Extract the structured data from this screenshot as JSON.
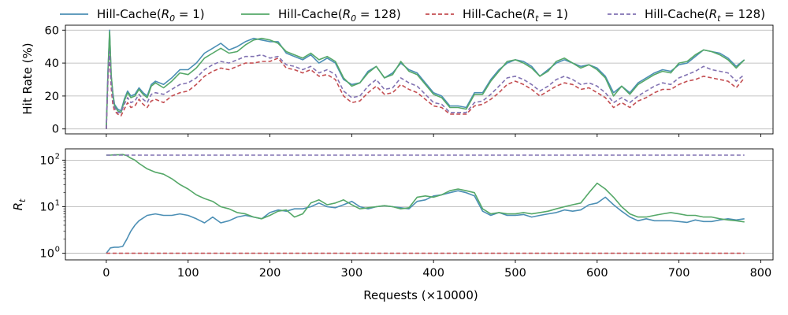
{
  "chart_data": [
    {
      "type": "line",
      "panel": "top",
      "ylabel": "Hit Rate (%)",
      "xlim": [
        -50,
        815
      ],
      "ylim": [
        -3,
        63
      ],
      "yticks": [
        0,
        20,
        40,
        60
      ],
      "grid": "y",
      "legend": "top",
      "series": [
        {
          "name": "Hill-Cache(R_0 = 1)",
          "color": "#4c8fb5",
          "dash": "solid",
          "x": [
            0,
            2,
            4,
            6,
            8,
            10,
            14,
            18,
            22,
            26,
            30,
            35,
            40,
            45,
            50,
            55,
            60,
            70,
            80,
            90,
            100,
            110,
            120,
            130,
            140,
            150,
            160,
            170,
            180,
            190,
            200,
            210,
            220,
            230,
            240,
            250,
            260,
            270,
            280,
            290,
            300,
            310,
            320,
            330,
            340,
            350,
            360,
            370,
            380,
            390,
            400,
            410,
            420,
            430,
            440,
            450,
            460,
            470,
            480,
            490,
            500,
            510,
            520,
            530,
            540,
            550,
            560,
            570,
            580,
            590,
            600,
            610,
            620,
            630,
            640,
            650,
            660,
            670,
            680,
            690,
            700,
            710,
            720,
            730,
            740,
            750,
            760,
            770,
            780
          ],
          "y": [
            0,
            35,
            60,
            32,
            22,
            15,
            12,
            11,
            18,
            23,
            20,
            21,
            25,
            22,
            20,
            27,
            29,
            27,
            31,
            36,
            36,
            40,
            46,
            49,
            52,
            48,
            50,
            53,
            55,
            54,
            53,
            53,
            46,
            44,
            42,
            45,
            40,
            43,
            40,
            30,
            27,
            28,
            35,
            38,
            31,
            34,
            40,
            36,
            34,
            28,
            22,
            20,
            14,
            14,
            13,
            22,
            22,
            30,
            36,
            40,
            42,
            41,
            38,
            32,
            36,
            40,
            42,
            40,
            38,
            39,
            37,
            32,
            22,
            26,
            22,
            28,
            31,
            34,
            36,
            35,
            39,
            40,
            44,
            48,
            47,
            46,
            43,
            38,
            42
          ]
        },
        {
          "name": "Hill-Cache(R_0 = 128)",
          "color": "#55a868",
          "dash": "solid",
          "x": [
            0,
            2,
            4,
            6,
            8,
            10,
            14,
            18,
            22,
            26,
            30,
            35,
            40,
            45,
            50,
            55,
            60,
            70,
            80,
            90,
            100,
            110,
            120,
            130,
            140,
            150,
            160,
            170,
            180,
            190,
            200,
            210,
            220,
            230,
            240,
            250,
            260,
            270,
            280,
            290,
            300,
            310,
            320,
            330,
            340,
            350,
            360,
            370,
            380,
            390,
            400,
            410,
            420,
            430,
            440,
            450,
            460,
            470,
            480,
            490,
            500,
            510,
            520,
            530,
            540,
            550,
            560,
            570,
            580,
            590,
            600,
            610,
            620,
            630,
            640,
            650,
            660,
            670,
            680,
            690,
            700,
            710,
            720,
            730,
            740,
            750,
            760,
            770,
            780
          ],
          "y": [
            0,
            34,
            59,
            33,
            21,
            14,
            11,
            10,
            17,
            22,
            19,
            20,
            24,
            21,
            19,
            26,
            28,
            25,
            29,
            34,
            33,
            37,
            43,
            46,
            49,
            46,
            47,
            51,
            54,
            55,
            54,
            52,
            47,
            45,
            43,
            46,
            42,
            44,
            41,
            31,
            26,
            28,
            34,
            38,
            31,
            33,
            41,
            35,
            33,
            27,
            21,
            19,
            13,
            13,
            12,
            21,
            21,
            29,
            35,
            41,
            42,
            40,
            37,
            32,
            35,
            41,
            43,
            40,
            37,
            39,
            36,
            31,
            20,
            26,
            21,
            27,
            30,
            33,
            35,
            34,
            40,
            41,
            45,
            48,
            47,
            45,
            42,
            37,
            42
          ]
        },
        {
          "name": "Hill-Cache(R_t = 1)",
          "color": "#c44e52",
          "dash": "dashed",
          "x": [
            0,
            2,
            4,
            6,
            8,
            10,
            14,
            18,
            22,
            26,
            30,
            35,
            40,
            45,
            50,
            55,
            60,
            70,
            80,
            90,
            100,
            110,
            120,
            130,
            140,
            150,
            160,
            170,
            180,
            190,
            200,
            210,
            220,
            230,
            240,
            250,
            260,
            270,
            280,
            290,
            300,
            310,
            320,
            330,
            340,
            350,
            360,
            370,
            380,
            390,
            400,
            410,
            420,
            430,
            440,
            450,
            460,
            470,
            480,
            490,
            500,
            510,
            520,
            530,
            540,
            550,
            560,
            570,
            580,
            590,
            600,
            610,
            620,
            630,
            640,
            650,
            660,
            670,
            680,
            690,
            700,
            710,
            720,
            730,
            740,
            750,
            760,
            770,
            780
          ],
          "y": [
            0,
            30,
            45,
            25,
            15,
            11,
            9,
            8,
            12,
            16,
            13,
            14,
            18,
            15,
            13,
            17,
            18,
            16,
            20,
            22,
            23,
            27,
            32,
            35,
            37,
            36,
            38,
            40,
            40,
            41,
            41,
            43,
            37,
            36,
            34,
            36,
            32,
            33,
            30,
            20,
            16,
            17,
            22,
            26,
            21,
            22,
            27,
            24,
            22,
            18,
            14,
            13,
            9,
            9,
            9,
            14,
            15,
            18,
            22,
            27,
            29,
            27,
            24,
            20,
            23,
            26,
            28,
            27,
            24,
            25,
            22,
            19,
            13,
            16,
            13,
            17,
            19,
            22,
            24,
            24,
            27,
            29,
            30,
            32,
            31,
            30,
            29,
            25,
            31
          ]
        },
        {
          "name": "Hill-Cache(R_t = 128)",
          "color": "#8172b2",
          "dash": "dashed",
          "x": [
            0,
            2,
            4,
            6,
            8,
            10,
            14,
            18,
            22,
            26,
            30,
            35,
            40,
            45,
            50,
            55,
            60,
            70,
            80,
            90,
            100,
            110,
            120,
            130,
            140,
            150,
            160,
            170,
            180,
            190,
            200,
            210,
            220,
            230,
            240,
            250,
            260,
            270,
            280,
            290,
            300,
            310,
            320,
            330,
            340,
            350,
            360,
            370,
            380,
            390,
            400,
            410,
            420,
            430,
            440,
            450,
            460,
            470,
            480,
            490,
            500,
            510,
            520,
            530,
            540,
            550,
            560,
            570,
            580,
            590,
            600,
            610,
            620,
            630,
            640,
            650,
            660,
            670,
            680,
            690,
            700,
            710,
            720,
            730,
            740,
            750,
            760,
            770,
            780
          ],
          "y": [
            0,
            32,
            47,
            28,
            18,
            13,
            10,
            10,
            15,
            19,
            16,
            17,
            21,
            18,
            16,
            21,
            22,
            21,
            24,
            27,
            28,
            31,
            36,
            39,
            41,
            40,
            42,
            44,
            44,
            45,
            43,
            44,
            39,
            38,
            36,
            38,
            34,
            36,
            33,
            23,
            19,
            20,
            26,
            30,
            24,
            25,
            31,
            28,
            26,
            21,
            16,
            15,
            10,
            10,
            10,
            16,
            17,
            21,
            26,
            31,
            32,
            30,
            27,
            23,
            26,
            30,
            32,
            30,
            27,
            28,
            26,
            22,
            16,
            19,
            16,
            20,
            23,
            26,
            28,
            27,
            31,
            33,
            35,
            38,
            36,
            35,
            34,
            29,
            33
          ]
        }
      ]
    },
    {
      "type": "line",
      "panel": "bottom",
      "ylabel": "R_t",
      "xlabel": "Requests (×10000)",
      "xlim": [
        -50,
        815
      ],
      "xticks": [
        0,
        100,
        200,
        300,
        400,
        500,
        600,
        700,
        800
      ],
      "yscale": "log",
      "ylim": [
        0.72,
        175
      ],
      "yticks": [
        1,
        10,
        100
      ],
      "grid": "y",
      "series": [
        {
          "name": "Hill-Cache(R_0 = 1)",
          "color": "#4c8fb5",
          "dash": "solid",
          "x": [
            0,
            5,
            10,
            15,
            20,
            25,
            30,
            35,
            40,
            50,
            60,
            70,
            80,
            90,
            100,
            110,
            120,
            130,
            140,
            150,
            160,
            170,
            180,
            190,
            200,
            210,
            220,
            230,
            240,
            250,
            260,
            270,
            280,
            290,
            300,
            310,
            320,
            330,
            340,
            350,
            360,
            370,
            380,
            390,
            400,
            410,
            420,
            430,
            440,
            450,
            460,
            470,
            480,
            490,
            500,
            510,
            520,
            530,
            540,
            550,
            560,
            570,
            580,
            590,
            600,
            610,
            620,
            630,
            640,
            650,
            660,
            670,
            680,
            690,
            700,
            710,
            720,
            730,
            740,
            750,
            760,
            770,
            780
          ],
          "y": [
            1,
            1.3,
            1.35,
            1.35,
            1.4,
            2,
            3,
            4,
            5,
            6.5,
            7,
            6.5,
            6.5,
            7,
            6.5,
            5.5,
            4.5,
            6,
            4.5,
            5,
            6,
            6.5,
            6,
            5.5,
            7.5,
            8.5,
            8,
            9,
            9,
            10,
            12,
            10,
            9.5,
            11,
            13,
            10,
            9,
            10,
            10.5,
            10,
            9.5,
            9,
            13,
            14,
            17,
            18,
            20,
            22,
            20,
            17,
            8,
            6.5,
            7.5,
            6.5,
            6.5,
            6.8,
            6,
            6.5,
            7,
            7.5,
            8.5,
            8,
            8.5,
            11,
            12,
            16,
            11,
            8,
            6,
            5,
            5.5,
            5,
            5,
            5,
            4.8,
            4.6,
            5.2,
            4.8,
            4.8,
            5.2,
            5.5,
            5.2,
            5.5
          ]
        },
        {
          "name": "Hill-Cache(R_0 = 128)",
          "color": "#55a868",
          "dash": "solid",
          "x": [
            0,
            5,
            10,
            15,
            20,
            25,
            30,
            35,
            40,
            50,
            60,
            70,
            80,
            90,
            100,
            110,
            120,
            130,
            140,
            150,
            160,
            170,
            180,
            190,
            200,
            210,
            220,
            230,
            240,
            250,
            260,
            270,
            280,
            290,
            300,
            310,
            320,
            330,
            340,
            350,
            360,
            370,
            380,
            390,
            400,
            410,
            420,
            430,
            440,
            450,
            460,
            470,
            480,
            490,
            500,
            510,
            520,
            530,
            540,
            550,
            560,
            570,
            580,
            590,
            600,
            610,
            620,
            630,
            640,
            650,
            660,
            670,
            680,
            690,
            700,
            710,
            720,
            730,
            740,
            750,
            760,
            770,
            780
          ],
          "y": [
            128,
            128,
            130,
            130,
            132,
            125,
            110,
            100,
            85,
            65,
            55,
            50,
            40,
            30,
            24,
            18,
            15,
            13,
            10,
            9,
            7.5,
            7,
            6,
            5.5,
            6.5,
            8,
            8.5,
            6,
            7,
            12,
            14,
            11,
            12,
            14,
            11,
            9,
            9.5,
            10,
            10.5,
            10,
            9,
            9.5,
            16,
            17,
            16,
            18,
            22,
            24,
            22,
            20,
            9,
            7,
            7.5,
            7,
            7,
            7.5,
            7,
            7.5,
            8,
            9,
            10,
            11,
            12,
            20,
            32,
            24,
            16,
            10,
            7,
            6,
            6,
            6.5,
            7,
            7.5,
            7,
            6.5,
            6.5,
            6,
            6,
            5.5,
            5.2,
            5,
            4.7
          ]
        },
        {
          "name": "Hill-Cache(R_t = 1)",
          "color": "#c44e52",
          "dash": "dashed",
          "x": [
            0,
            780
          ],
          "y": [
            1,
            1
          ]
        },
        {
          "name": "Hill-Cache(R_t = 128)",
          "color": "#8172b2",
          "dash": "dashed",
          "x": [
            0,
            780
          ],
          "y": [
            128,
            128
          ]
        }
      ]
    }
  ]
}
